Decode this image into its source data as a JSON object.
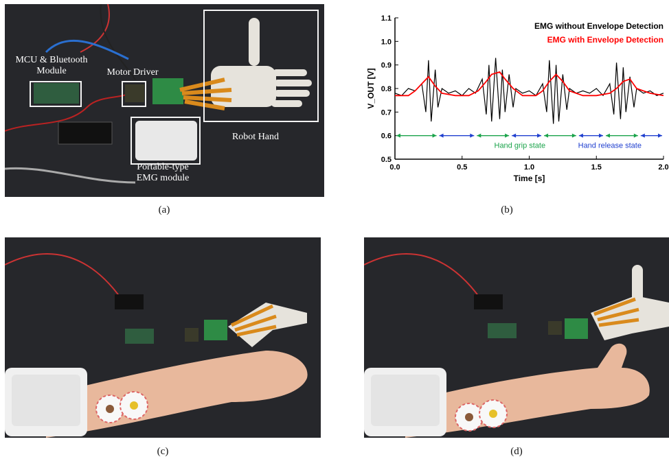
{
  "panels": {
    "a": {
      "caption": "(a)",
      "labels": {
        "mcu": "MCU & Bluetooth Module",
        "motor": "Motor Driver",
        "robot": "Robot Hand",
        "emg": "Portable-type EMG module"
      }
    },
    "b": {
      "caption": "(b)"
    },
    "c": {
      "caption": "(c)"
    },
    "d": {
      "caption": "(d)"
    }
  },
  "chart_data": {
    "type": "line",
    "xlabel": "Time [s]",
    "ylabel": "V_OUT [V]",
    "xlim": [
      0.0,
      2.0
    ],
    "ylim": [
      0.5,
      1.1
    ],
    "xticks": [
      "0.0",
      "0.5",
      "1.0",
      "1.5",
      "2.0"
    ],
    "yticks": [
      "0.5",
      "0.6",
      "0.7",
      "0.8",
      "0.9",
      "1.0",
      "1.1"
    ],
    "legend": [
      {
        "name": "EMG without Envelope Detection",
        "color": "#000000"
      },
      {
        "name": "EMG with Envelope Detection",
        "color": "#ff0000"
      }
    ],
    "series": [
      {
        "name": "EMG without Envelope Detection",
        "color": "#000000",
        "x": [
          0.0,
          0.05,
          0.1,
          0.15,
          0.2,
          0.23,
          0.25,
          0.27,
          0.3,
          0.32,
          0.35,
          0.4,
          0.45,
          0.5,
          0.55,
          0.6,
          0.65,
          0.68,
          0.7,
          0.72,
          0.75,
          0.78,
          0.8,
          0.82,
          0.85,
          0.88,
          0.9,
          0.95,
          1.0,
          1.05,
          1.1,
          1.13,
          1.15,
          1.18,
          1.2,
          1.22,
          1.25,
          1.28,
          1.3,
          1.35,
          1.4,
          1.45,
          1.5,
          1.55,
          1.6,
          1.63,
          1.65,
          1.68,
          1.7,
          1.72,
          1.75,
          1.78,
          1.8,
          1.85,
          1.9,
          1.95,
          2.0
        ],
        "y": [
          0.78,
          0.77,
          0.8,
          0.79,
          0.82,
          0.7,
          0.92,
          0.66,
          0.88,
          0.72,
          0.8,
          0.78,
          0.79,
          0.77,
          0.8,
          0.78,
          0.84,
          0.69,
          0.9,
          0.66,
          0.93,
          0.67,
          0.88,
          0.7,
          0.86,
          0.72,
          0.8,
          0.78,
          0.79,
          0.77,
          0.82,
          0.7,
          0.92,
          0.65,
          0.9,
          0.66,
          0.86,
          0.71,
          0.8,
          0.78,
          0.79,
          0.78,
          0.8,
          0.77,
          0.82,
          0.69,
          0.91,
          0.67,
          0.89,
          0.7,
          0.85,
          0.72,
          0.8,
          0.78,
          0.79,
          0.77,
          0.78
        ]
      },
      {
        "name": "EMG with Envelope Detection",
        "color": "#ff0000",
        "x": [
          0.0,
          0.1,
          0.15,
          0.2,
          0.25,
          0.3,
          0.35,
          0.45,
          0.55,
          0.62,
          0.68,
          0.72,
          0.78,
          0.82,
          0.88,
          0.95,
          1.05,
          1.1,
          1.15,
          1.2,
          1.25,
          1.3,
          1.4,
          1.5,
          1.6,
          1.65,
          1.7,
          1.75,
          1.8,
          1.9,
          2.0
        ],
        "y": [
          0.77,
          0.77,
          0.79,
          0.82,
          0.85,
          0.81,
          0.78,
          0.77,
          0.77,
          0.79,
          0.83,
          0.86,
          0.87,
          0.84,
          0.8,
          0.77,
          0.77,
          0.79,
          0.83,
          0.86,
          0.83,
          0.79,
          0.77,
          0.77,
          0.78,
          0.8,
          0.83,
          0.84,
          0.8,
          0.78,
          0.77
        ]
      }
    ],
    "annotations": [
      {
        "text": "Hand grip state",
        "color": "#1aa34a"
      },
      {
        "text": "Hand release state",
        "color": "#1f3fcf"
      }
    ],
    "grid": false,
    "legend_position": "top-right"
  }
}
